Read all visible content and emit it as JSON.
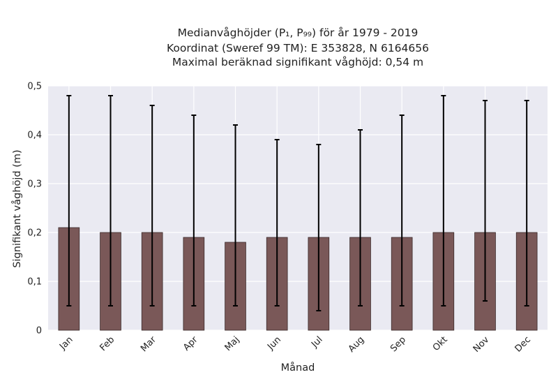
{
  "chart_data": {
    "type": "bar",
    "title_lines": [
      "Medianvåghöjder (P₁, P₉₉) för år 1979 - 2019",
      "Koordinat (Sweref 99 TM): E 353828, N 6164656",
      "Maximal beräknad signifikant våghöjd: 0,54 m"
    ],
    "xlabel": "Månad",
    "ylabel": "Signifikant våghöjd (m)",
    "categories": [
      "Jan",
      "Feb",
      "Mar",
      "Apr",
      "Maj",
      "Jun",
      "Jul",
      "Aug",
      "Sep",
      "Okt",
      "Nov",
      "Dec"
    ],
    "values": [
      0.21,
      0.2,
      0.2,
      0.19,
      0.18,
      0.19,
      0.19,
      0.19,
      0.19,
      0.2,
      0.2,
      0.2
    ],
    "error_low": [
      0.05,
      0.05,
      0.05,
      0.05,
      0.05,
      0.05,
      0.04,
      0.05,
      0.05,
      0.05,
      0.06,
      0.05
    ],
    "error_high": [
      0.48,
      0.48,
      0.46,
      0.44,
      0.42,
      0.39,
      0.38,
      0.41,
      0.44,
      0.48,
      0.47,
      0.47
    ],
    "ylim": [
      0,
      0.5
    ],
    "yticks": [
      0,
      0.1,
      0.2,
      0.3,
      0.4,
      0.5
    ],
    "ytick_labels": [
      "0",
      "0,1",
      "0,2",
      "0,3",
      "0,4",
      "0,5"
    ],
    "grid": true,
    "colors": {
      "bar": "#7a5858",
      "bar_edge": "#3a2a2a",
      "error": "#000000",
      "background": "#eaeaf2",
      "grid": "#ffffff"
    }
  }
}
